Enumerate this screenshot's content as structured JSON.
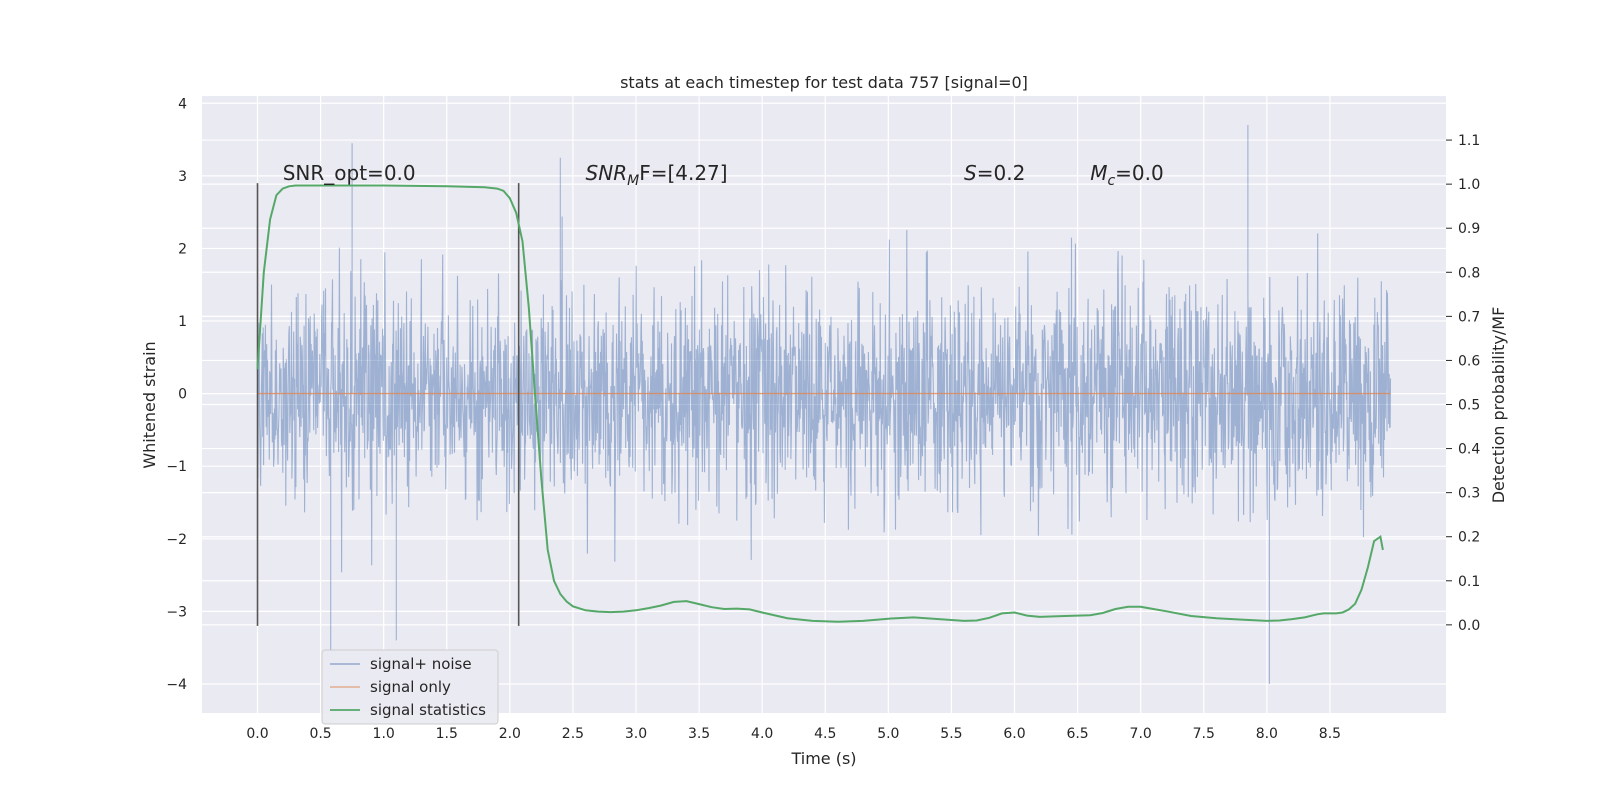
{
  "chart_data": {
    "type": "line",
    "title": "stats at each timestep for test data 757 [signal=0]",
    "xlabel": "Time (s)",
    "ylabel": "Whitened strain",
    "ylabel_right": "Detection probability/MF",
    "xlim": [
      -0.44,
      9.42
    ],
    "ylim": [
      -4.4,
      4.1
    ],
    "ylim_right": [
      -0.2,
      1.2
    ],
    "x_ticks": [
      "0.0",
      "0.5",
      "1.0",
      "1.5",
      "2.0",
      "2.5",
      "3.0",
      "3.5",
      "4.0",
      "4.5",
      "5.0",
      "5.5",
      "6.0",
      "6.5",
      "7.0",
      "7.5",
      "8.0",
      "8.5"
    ],
    "x_tick_values": [
      0.0,
      0.5,
      1.0,
      1.5,
      2.0,
      2.5,
      3.0,
      3.5,
      4.0,
      4.5,
      5.0,
      5.5,
      6.0,
      6.5,
      7.0,
      7.5,
      8.0,
      8.5
    ],
    "y_ticks": [
      "−4",
      "−3",
      "−2",
      "−1",
      "0",
      "1",
      "2",
      "3",
      "4"
    ],
    "y_tick_values": [
      -4,
      -3,
      -2,
      -1,
      0,
      1,
      2,
      3,
      4
    ],
    "y_right_ticks": [
      "0.0",
      "0.1",
      "0.2",
      "0.3",
      "0.4",
      "0.5",
      "0.6",
      "0.7",
      "0.8",
      "0.9",
      "1.0",
      "1.1"
    ],
    "y_right_tick_values": [
      0.0,
      0.1,
      0.2,
      0.3,
      0.4,
      0.5,
      0.6,
      0.7,
      0.8,
      0.9,
      1.0,
      1.1
    ],
    "grid": true,
    "legend_position": "lower-left",
    "series": [
      {
        "name": "signal+ noise",
        "color": "#4c72b0",
        "axis": "left",
        "x_range": [
          0.0,
          8.98
        ],
        "typical_envelope": [
          -1.1,
          1.1
        ],
        "peaks": [
          {
            "x": 0.75,
            "y": 3.45
          },
          {
            "x": 2.4,
            "y": 3.25
          },
          {
            "x": 7.85,
            "y": 3.7
          },
          {
            "x": 0.58,
            "y": -3.55
          },
          {
            "x": 1.1,
            "y": -3.4
          },
          {
            "x": 8.02,
            "y": -4.0
          }
        ]
      },
      {
        "name": "signal only",
        "color": "#dd8452",
        "axis": "left",
        "x": [
          0.0,
          8.98
        ],
        "y": [
          0.0,
          0.0
        ]
      },
      {
        "name": "signal statistics",
        "color": "#55a868",
        "axis": "right",
        "x": [
          0.0,
          0.05,
          0.1,
          0.15,
          0.2,
          0.25,
          0.3,
          0.5,
          1.0,
          1.5,
          1.8,
          1.9,
          1.95,
          2.0,
          2.05,
          2.1,
          2.15,
          2.2,
          2.25,
          2.3,
          2.35,
          2.4,
          2.45,
          2.5,
          2.6,
          2.7,
          2.8,
          2.9,
          3.0,
          3.1,
          3.2,
          3.3,
          3.4,
          3.5,
          3.6,
          3.7,
          3.8,
          3.9,
          4.0,
          4.2,
          4.4,
          4.6,
          4.8,
          5.0,
          5.2,
          5.4,
          5.6,
          5.7,
          5.8,
          5.9,
          6.0,
          6.1,
          6.2,
          6.4,
          6.5,
          6.6,
          6.7,
          6.8,
          6.9,
          7.0,
          7.2,
          7.4,
          7.6,
          7.8,
          8.0,
          8.1,
          8.2,
          8.3,
          8.4,
          8.45,
          8.5,
          8.55,
          8.6,
          8.65,
          8.7,
          8.75,
          8.8,
          8.85,
          8.9,
          8.92
        ],
        "y": [
          0.58,
          0.8,
          0.92,
          0.975,
          0.99,
          0.995,
          0.997,
          0.997,
          0.997,
          0.995,
          0.993,
          0.99,
          0.985,
          0.968,
          0.935,
          0.87,
          0.72,
          0.52,
          0.33,
          0.17,
          0.1,
          0.07,
          0.053,
          0.042,
          0.033,
          0.03,
          0.029,
          0.03,
          0.033,
          0.038,
          0.044,
          0.052,
          0.054,
          0.047,
          0.04,
          0.036,
          0.037,
          0.035,
          0.028,
          0.015,
          0.009,
          0.007,
          0.009,
          0.014,
          0.017,
          0.013,
          0.009,
          0.01,
          0.016,
          0.026,
          0.028,
          0.021,
          0.018,
          0.02,
          0.021,
          0.022,
          0.027,
          0.036,
          0.041,
          0.041,
          0.031,
          0.02,
          0.015,
          0.012,
          0.009,
          0.01,
          0.013,
          0.017,
          0.024,
          0.026,
          0.026,
          0.026,
          0.028,
          0.035,
          0.048,
          0.08,
          0.13,
          0.19,
          0.2,
          0.17
        ]
      }
    ],
    "vertical_markers": [
      {
        "x": 0.0,
        "y_range": [
          -3.2,
          2.9
        ],
        "color": "#555555"
      },
      {
        "x": 2.07,
        "y_range": [
          -3.2,
          2.9
        ],
        "color": "#555555"
      }
    ],
    "annotations": [
      {
        "id": "snr_opt",
        "text": "SNR_opt=0.0",
        "x": 0.2,
        "y": 3.0
      },
      {
        "id": "snr_mf",
        "main": "SNR",
        "sub": "M",
        "rest": "F=[4.27]",
        "x": 2.6,
        "y": 3.0
      },
      {
        "id": "s",
        "main": "S",
        "sub": "",
        "rest": "=0.2",
        "x": 5.6,
        "y": 3.0
      },
      {
        "id": "mc",
        "main": "M",
        "sub": "c",
        "rest": "=0.0",
        "x": 6.6,
        "y": 3.0
      }
    ]
  }
}
